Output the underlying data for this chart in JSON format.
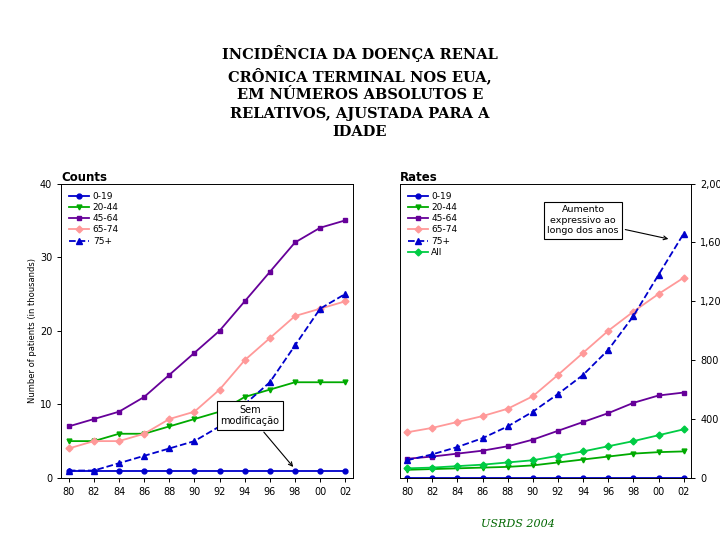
{
  "title": "INCIDÊNCIA DA DOENÇA RENAL\nCRÔNICA TERMINAL NOS EUA,\nEM NÚMEROS ABSOLUTOS E\nRELATIVOS, AJUSTADA PARA A\nIDADE",
  "years_labels": [
    "80",
    "82",
    "84",
    "86",
    "88",
    "90",
    "92",
    "94",
    "96",
    "98",
    "00",
    "02"
  ],
  "counts_019": [
    1,
    1,
    1,
    1,
    1,
    1,
    1,
    1,
    1,
    1,
    1,
    1
  ],
  "counts_2044": [
    5,
    5,
    6,
    6,
    7,
    8,
    9,
    11,
    12,
    13,
    13,
    13
  ],
  "counts_4564": [
    7,
    8,
    9,
    11,
    14,
    17,
    20,
    24,
    28,
    32,
    34,
    35
  ],
  "counts_6574": [
    4,
    5,
    5,
    6,
    8,
    9,
    12,
    16,
    19,
    22,
    23,
    24
  ],
  "counts_75p": [
    1,
    1,
    2,
    3,
    4,
    5,
    7,
    10,
    13,
    18,
    23,
    25
  ],
  "rates_019": [
    2,
    2,
    2,
    2,
    2,
    2,
    2,
    2,
    2,
    2,
    2,
    2
  ],
  "rates_2044": [
    55,
    60,
    65,
    70,
    75,
    85,
    105,
    125,
    145,
    165,
    175,
    180
  ],
  "rates_4564": [
    130,
    145,
    165,
    185,
    215,
    260,
    320,
    380,
    440,
    510,
    560,
    580
  ],
  "rates_6574": [
    310,
    340,
    380,
    420,
    470,
    555,
    700,
    850,
    1000,
    1130,
    1250,
    1360
  ],
  "rates_75p": [
    120,
    160,
    210,
    270,
    350,
    450,
    570,
    700,
    870,
    1100,
    1380,
    1660
  ],
  "rates_all": [
    65,
    70,
    80,
    90,
    105,
    120,
    150,
    180,
    215,
    250,
    290,
    330
  ],
  "border_color": "#cc0000",
  "color_019": "#0000cc",
  "color_2044": "#00aa00",
  "color_4564": "#660099",
  "color_6574": "#ff9999",
  "color_75p": "#0000cc",
  "color_all": "#00cc44",
  "footer": "USRDS 2004",
  "annotation_counts": "Sem\nmodificação",
  "annotation_rates": "Aumento\nexpressivo ao\nlongo dos anos"
}
